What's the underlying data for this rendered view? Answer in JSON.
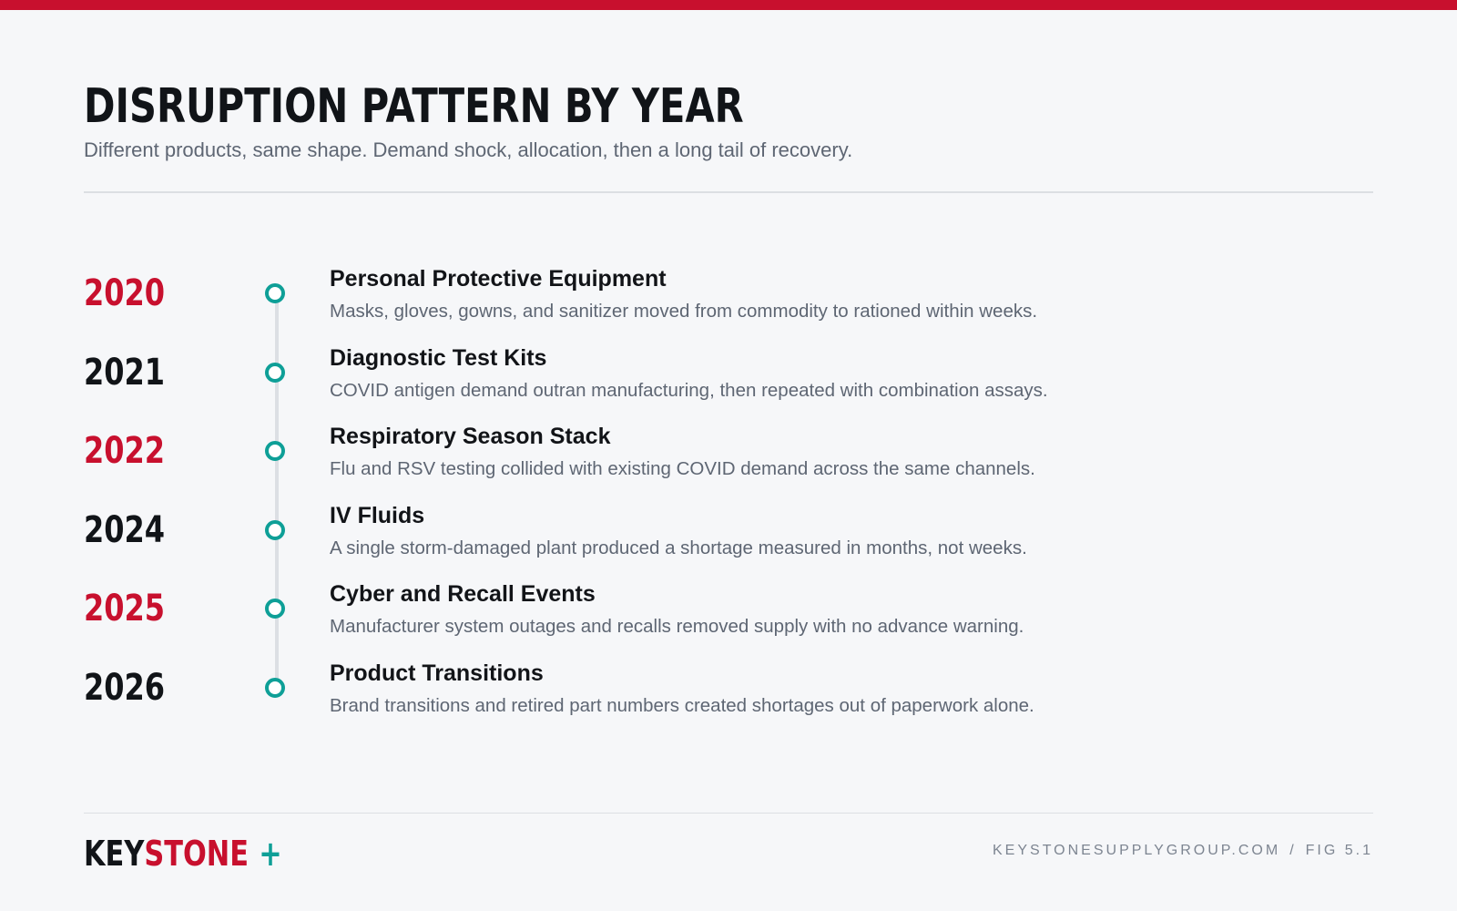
{
  "colors": {
    "accent_red": "#c8102e",
    "accent_teal": "#0e9f97",
    "text_dark": "#111418",
    "text_muted": "#5e6673"
  },
  "header": {
    "title": "DISRUPTION PATTERN BY YEAR",
    "subtitle": "Different products, same shape. Demand shock, allocation, then a long tail of recovery."
  },
  "timeline": {
    "events": [
      {
        "year": "2020",
        "title": "Personal Protective Equipment",
        "description": "Masks, gloves, gowns, and sanitizer moved from commodity to rationed within weeks.",
        "year_color": "#c8102e"
      },
      {
        "year": "2021",
        "title": "Diagnostic Test Kits",
        "description": "COVID antigen demand outran manufacturing, then repeated with combination assays.",
        "year_color": "#111418"
      },
      {
        "year": "2022",
        "title": "Respiratory Season Stack",
        "description": "Flu and RSV testing collided with existing COVID demand across the same channels.",
        "year_color": "#c8102e"
      },
      {
        "year": "2024",
        "title": "IV Fluids",
        "description": "A single storm-damaged plant produced a shortage measured in months, not weeks.",
        "year_color": "#111418"
      },
      {
        "year": "2025",
        "title": "Cyber and Recall Events",
        "description": "Manufacturer system outages and recalls removed supply with no advance warning.",
        "year_color": "#c8102e"
      },
      {
        "year": "2026",
        "title": "Product Transitions",
        "description": "Brand transitions and retired part numbers created shortages out of paperwork alone.",
        "year_color": "#111418"
      }
    ]
  },
  "footer": {
    "logo_part1": "KEY",
    "logo_part2": "STONE",
    "logo_plus": "+",
    "website": "KEYSTONESUPPLYGROUP.COM",
    "separator": "/",
    "figure": "FIG 5.1"
  }
}
